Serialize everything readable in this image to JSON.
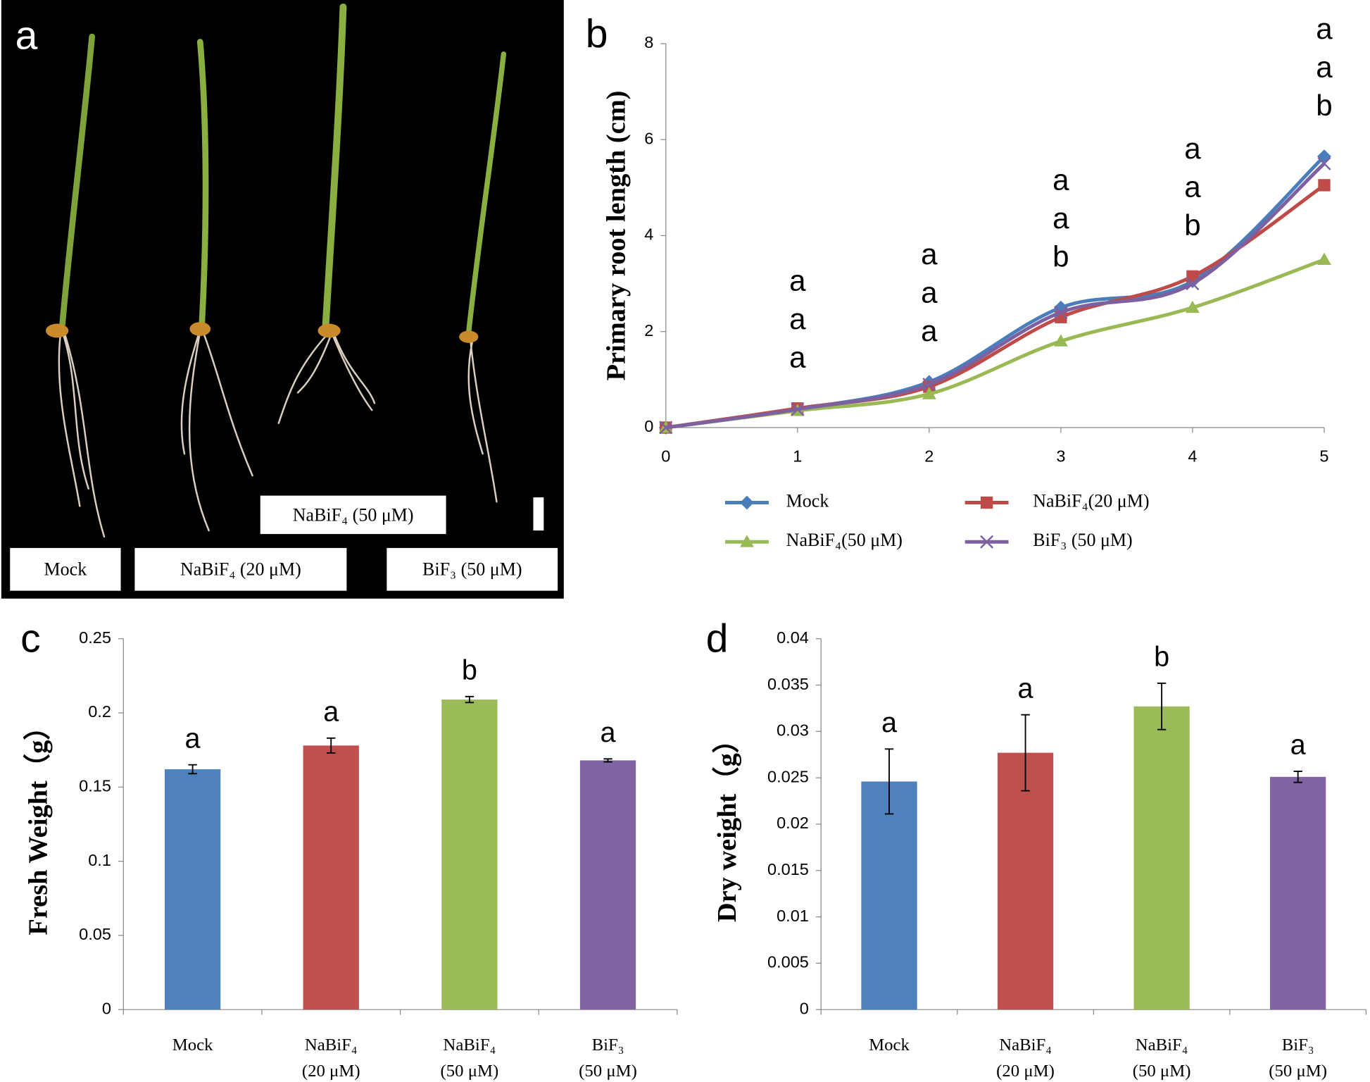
{
  "photo_panel": {
    "panel_label": "a",
    "labels": [
      "NaBiF₄ (50 μM)",
      "Mock",
      "NaBiF₄ (20 μM)",
      "BiF₃ (50 μM)"
    ]
  },
  "chart_data": [
    {
      "type": "line",
      "panel_label": "b",
      "y_label": "Primary root length (cm)",
      "x": [
        0,
        1,
        2,
        3,
        4,
        5
      ],
      "xlim": [
        0,
        5
      ],
      "xticks": [
        0,
        1,
        2,
        3,
        4,
        5
      ],
      "ylim": [
        0,
        8
      ],
      "yticks": [
        0,
        2,
        4,
        6,
        8
      ],
      "series": [
        {
          "name": "Mock",
          "color": "#4a7ebb",
          "marker": "diamond",
          "values": [
            0,
            0.38,
            0.95,
            2.5,
            3.05,
            5.65
          ]
        },
        {
          "name": "NaBiF₄(20 μM)",
          "color": "#be4b48",
          "marker": "square",
          "values": [
            0,
            0.4,
            0.85,
            2.3,
            3.15,
            5.05
          ]
        },
        {
          "name": "NaBiF₄(50 μM)",
          "color": "#98b954",
          "marker": "triangle",
          "values": [
            0,
            0.35,
            0.7,
            1.8,
            2.5,
            3.5
          ]
        },
        {
          "name": "BiF₃ (50 μM)",
          "color": "#7d60a0",
          "marker": "cross",
          "values": [
            0,
            0.38,
            0.9,
            2.4,
            3.0,
            5.5
          ]
        }
      ],
      "annotations": [
        {
          "x": 1,
          "labels": [
            "a",
            "a",
            "a"
          ]
        },
        {
          "x": 2,
          "labels": [
            "a",
            "a",
            "a"
          ]
        },
        {
          "x": 3,
          "labels": [
            "a",
            "a",
            "b"
          ]
        },
        {
          "x": 4,
          "labels": [
            "a",
            "a",
            "b"
          ]
        },
        {
          "x": 5,
          "labels": [
            "a",
            "a",
            "b"
          ]
        }
      ]
    },
    {
      "type": "bar",
      "panel_label": "c",
      "y_label": "Fresh Weight（g）",
      "categories": [
        [
          "Mock"
        ],
        [
          "NaBiF₄",
          "(20 μM)"
        ],
        [
          "NaBiF₄",
          "(50 μM)"
        ],
        [
          "BiF₃",
          "(50 μM)"
        ]
      ],
      "values": [
        0.162,
        0.178,
        0.209,
        0.168
      ],
      "errors": [
        0.003,
        0.005,
        0.002,
        0.001
      ],
      "colors": [
        "#4f81bd",
        "#c0504d",
        "#9bbb59",
        "#8064a2"
      ],
      "annotations": [
        "a",
        "a",
        "b",
        "a"
      ],
      "ylim": [
        0,
        0.25
      ],
      "yticks": [
        0,
        0.05,
        0.1,
        0.15,
        0.2,
        0.25
      ]
    },
    {
      "type": "bar",
      "panel_label": "d",
      "y_label": "Dry weight（g）",
      "categories": [
        [
          "Mock"
        ],
        [
          "NaBiF₄",
          "(20 μM)"
        ],
        [
          "NaBiF₄",
          "(50 μM)"
        ],
        [
          "BiF₃",
          "(50 μM)"
        ]
      ],
      "values": [
        0.0246,
        0.0277,
        0.0327,
        0.0251
      ],
      "errors": [
        0.0035,
        0.0041,
        0.0025,
        0.0006
      ],
      "colors": [
        "#4f81bd",
        "#c0504d",
        "#9bbb59",
        "#8064a2"
      ],
      "annotations": [
        "a",
        "a",
        "b",
        "a"
      ],
      "ylim": [
        0,
        0.04
      ],
      "yticks": [
        0,
        0.005,
        0.01,
        0.015,
        0.02,
        0.025,
        0.03,
        0.035,
        0.04
      ]
    }
  ]
}
